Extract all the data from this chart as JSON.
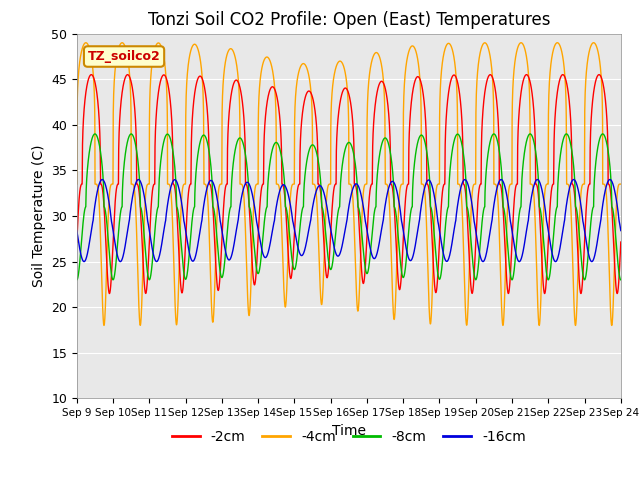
{
  "title": "Tonzi Soil CO2 Profile: Open (East) Temperatures",
  "xlabel": "Time",
  "ylabel": "Soil Temperature (C)",
  "ylim": [
    10,
    50
  ],
  "background_color": "#e8e8e8",
  "series": {
    "-2cm": {
      "color": "#ff0000",
      "amp": 12.0,
      "mean": 33.5,
      "phase_shift": 0.15,
      "sharpness": 3.0
    },
    "-4cm": {
      "color": "#ffa500",
      "amp": 15.5,
      "mean": 33.5,
      "phase_shift": 0.0,
      "sharpness": 5.0
    },
    "-8cm": {
      "color": "#00bb00",
      "amp": 8.0,
      "mean": 31.0,
      "phase_shift": 0.25,
      "sharpness": 2.0
    },
    "-16cm": {
      "color": "#0000dd",
      "amp": 4.5,
      "mean": 29.5,
      "phase_shift": 0.45,
      "sharpness": 1.2
    }
  },
  "series_order": [
    "-4cm",
    "-2cm",
    "-8cm",
    "-16cm"
  ],
  "xtick_labels": [
    "Sep 9",
    "Sep 10",
    "Sep 11",
    "Sep 12",
    "Sep 13",
    "Sep 14",
    "Sep 15",
    "Sep 16",
    "Sep 17",
    "Sep 18",
    "Sep 19",
    "Sep 20",
    "Sep 21",
    "Sep 22",
    "Sep 23",
    "Sep 24"
  ],
  "legend_box_label": "TZ_soilco2",
  "legend_entries": [
    "-2cm",
    "-4cm",
    "-8cm",
    "-16cm"
  ],
  "legend_colors": [
    "#ff0000",
    "#ffa500",
    "#00bb00",
    "#0000dd"
  ]
}
